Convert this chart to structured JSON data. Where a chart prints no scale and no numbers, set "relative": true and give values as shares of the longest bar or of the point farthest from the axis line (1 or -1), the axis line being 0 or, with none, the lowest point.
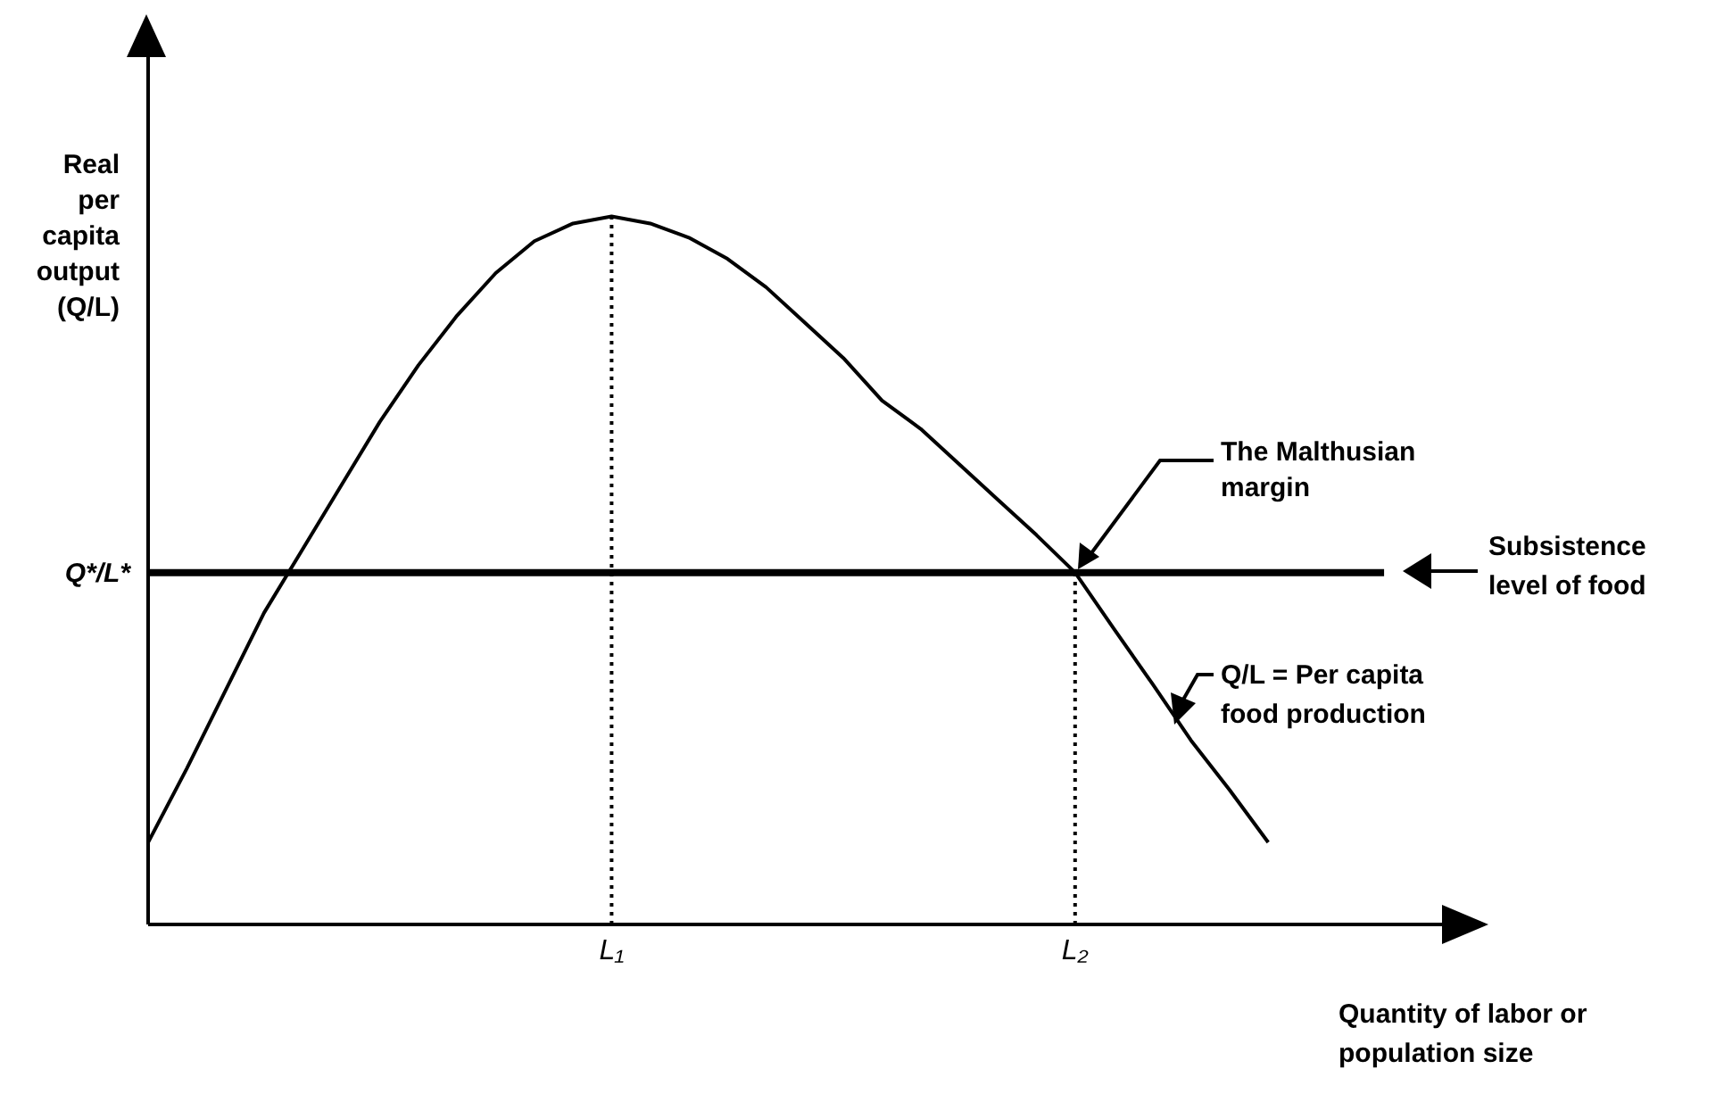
{
  "chart_data": {
    "type": "line",
    "relative": true,
    "ylabel": "Real per capita output (Q/L)",
    "xlabel": "Quantity of labor or population size",
    "categories": [
      null,
      null,
      null,
      null,
      null,
      null,
      null,
      null,
      null,
      null,
      null,
      null,
      "L₁",
      null,
      null,
      null,
      null,
      null,
      null,
      null,
      null,
      null,
      null,
      null,
      "L₂",
      null,
      null,
      null,
      null,
      null,
      null,
      null,
      null,
      null
    ],
    "series": [
      {
        "color": "#000000",
        "values": [
          0.116,
          0.22,
          0.33,
          0.44,
          0.53,
          0.62,
          0.71,
          0.79,
          0.86,
          0.92,
          0.965,
          0.99,
          1.0,
          0.99,
          0.97,
          0.94,
          0.9,
          0.85,
          0.8,
          0.74,
          0.7,
          0.65,
          0.6,
          0.55,
          0.497,
          0.418,
          0.34,
          0.26,
          0.19,
          0.116,
          null,
          null,
          null,
          null
        ]
      }
    ],
    "marker": "none",
    "line_style": "solid",
    "ref_lines": [
      {
        "axis": "y",
        "value": 0.497,
        "label": "Q*/L*",
        "color": "#000000"
      },
      {
        "axis": "x",
        "value": "L₁",
        "line_style": "dotted",
        "color": "#000000"
      },
      {
        "axis": "x",
        "value": "L₂",
        "line_style": "dotted",
        "color": "#000000"
      }
    ],
    "annotations": [
      "The Malthusian margin",
      "Subsistence level of food",
      "Q/L = Per capita food production"
    ]
  }
}
